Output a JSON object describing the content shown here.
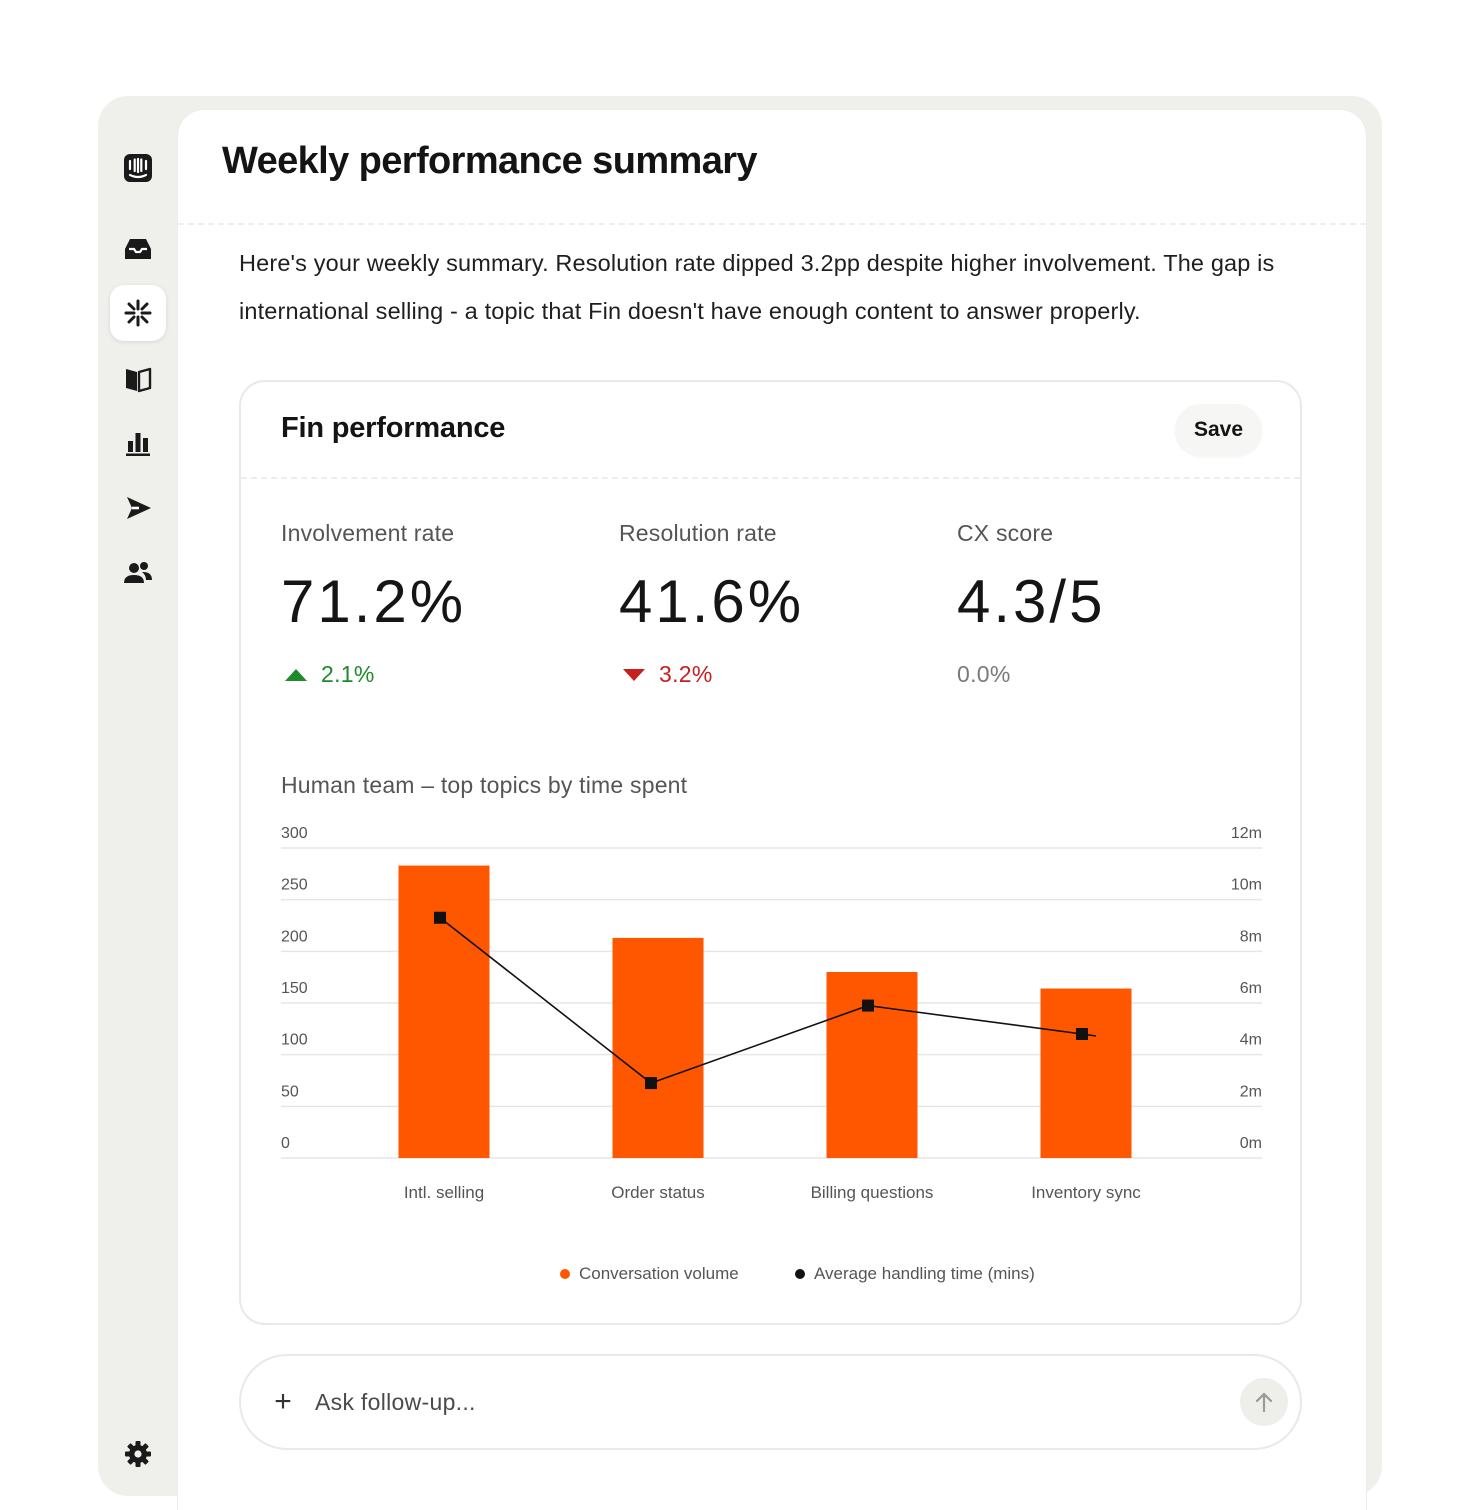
{
  "sidebar": {
    "items": [
      {
        "icon": "intercom-logo-icon"
      },
      {
        "icon": "inbox-icon"
      },
      {
        "icon": "fin-ai-icon",
        "active": true
      },
      {
        "icon": "knowledge-book-icon"
      },
      {
        "icon": "reports-bar-chart-icon"
      },
      {
        "icon": "outbound-send-icon"
      },
      {
        "icon": "contacts-people-icon"
      },
      {
        "icon": "settings-gear-icon"
      }
    ]
  },
  "page": {
    "title": "Weekly performance summary",
    "summary": "Here's your weekly summary. Resolution rate dipped 3.2pp despite higher involvement. The gap is international selling - a topic that Fin doesn't have enough content to answer properly."
  },
  "card": {
    "title": "Fin performance",
    "save_label": "Save",
    "metrics": [
      {
        "label": "Involvement rate",
        "value": "71.2%",
        "delta": "2.1%",
        "trend": "up"
      },
      {
        "label": "Resolution rate",
        "value": "41.6%",
        "delta": "3.2%",
        "trend": "down"
      },
      {
        "label": "CX score",
        "value": "4.3/5",
        "delta": "0.0%",
        "trend": "flat"
      }
    ]
  },
  "colors": {
    "bar": "#ff5600",
    "line": "#111111",
    "up": "#1f8a2a",
    "down": "#c81e1e"
  },
  "chart_data": {
    "type": "bar",
    "title": "Human team – top topics by time spent",
    "categories": [
      "Intl. selling",
      "Order status",
      "Billing questions",
      "Inventory sync"
    ],
    "series": [
      {
        "name": "Conversation volume",
        "type": "bar",
        "axis": "left",
        "values": [
          283,
          213,
          180,
          164
        ]
      },
      {
        "name": "Average handling time (mins)",
        "type": "line",
        "axis": "right",
        "values": [
          9.3,
          2.9,
          5.9,
          4.8
        ]
      }
    ],
    "y_left": {
      "ticks": [
        "0",
        "50",
        "100",
        "150",
        "200",
        "250",
        "300"
      ],
      "ylim": [
        0,
        300
      ]
    },
    "y_right": {
      "ticks": [
        "0m",
        "2m",
        "4m",
        "6m",
        "8m",
        "10m",
        "12m"
      ],
      "ylim": [
        0,
        12
      ]
    },
    "grid": true,
    "legend_position": "bottom-center"
  },
  "composer": {
    "placeholder": "Ask follow-up..."
  }
}
